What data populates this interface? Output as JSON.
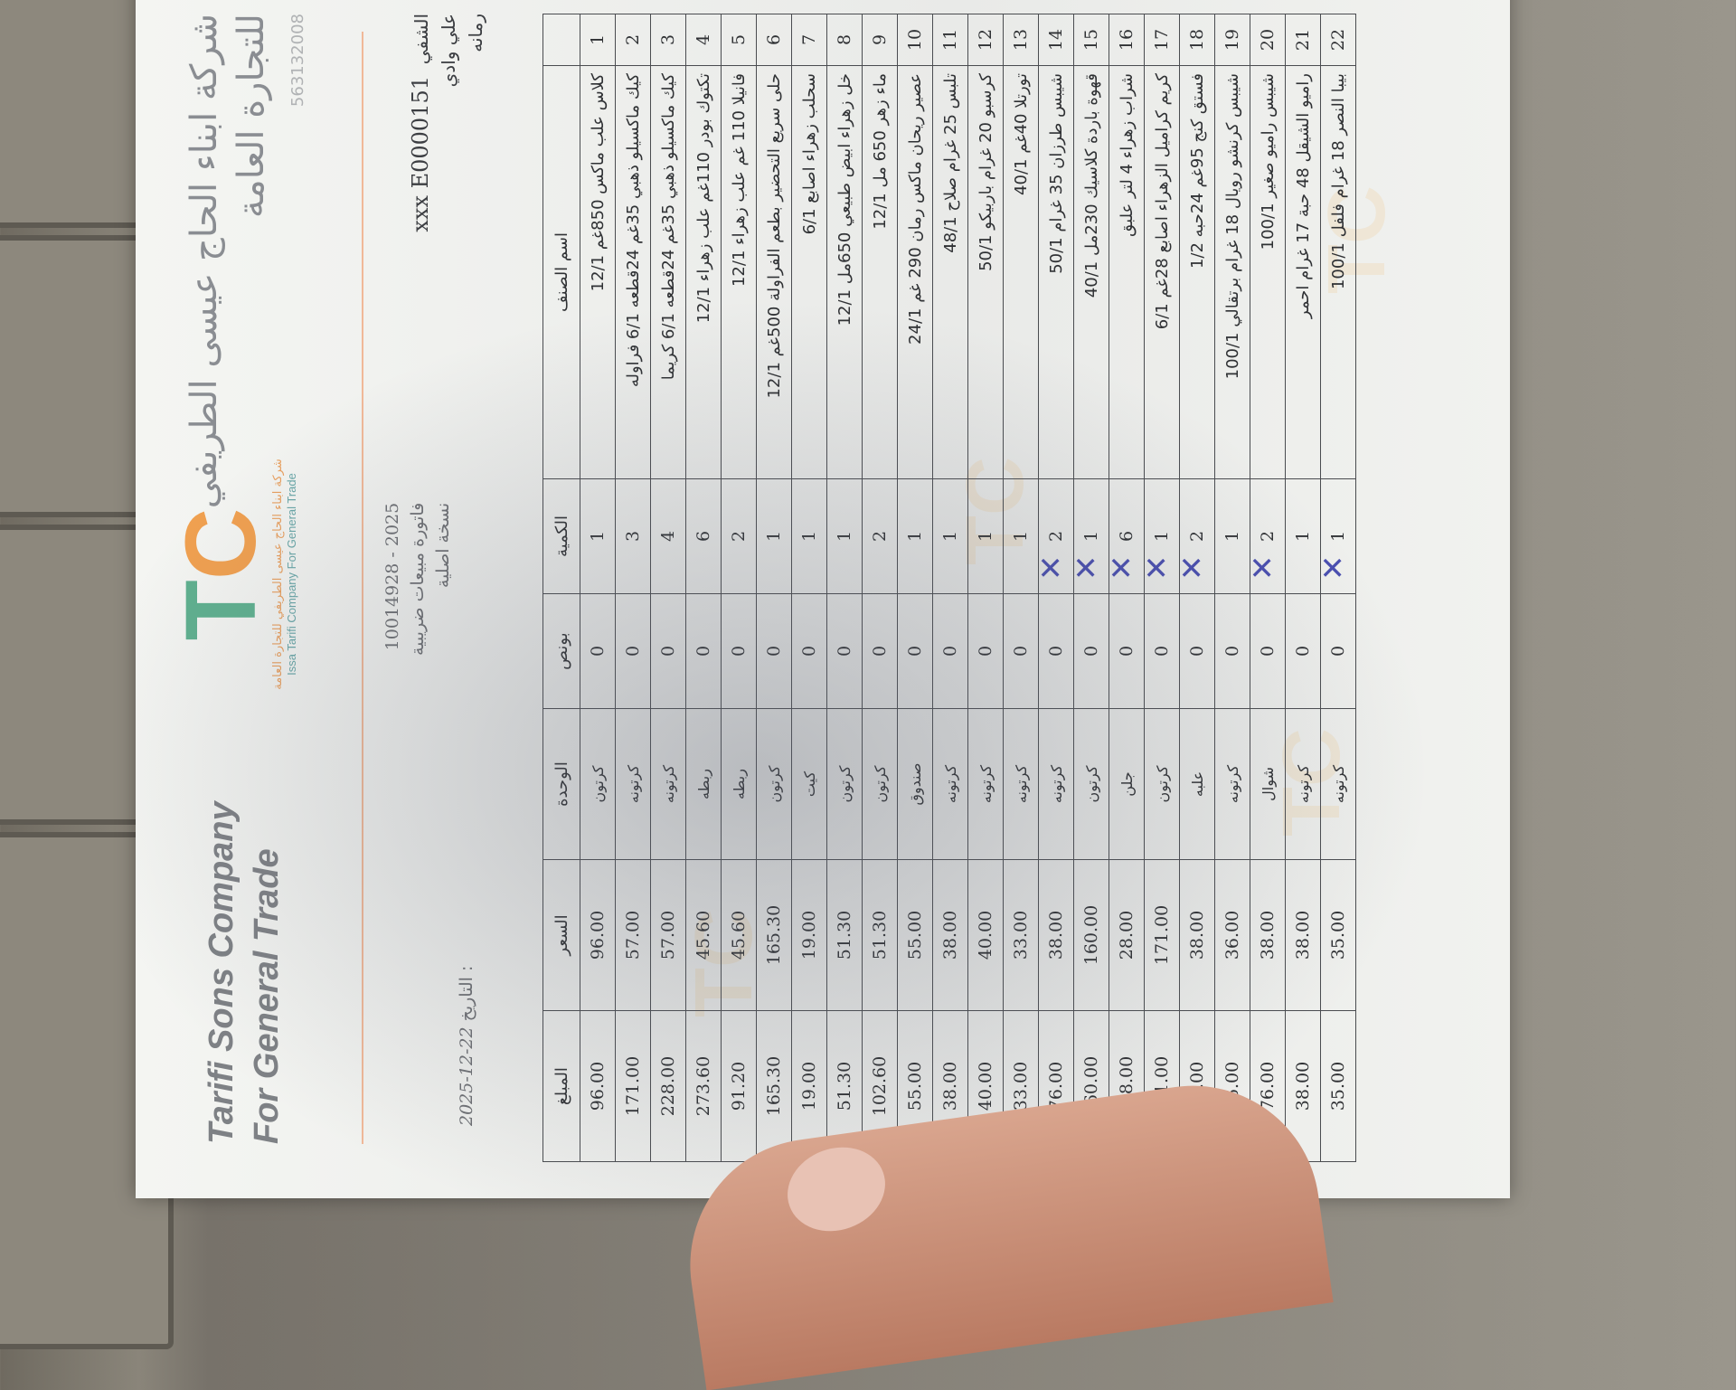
{
  "header": {
    "company_ar_line1": "شركة ابناء الحاج عيسى الطريفي",
    "company_ar_line2": "للتجارة العامة",
    "registration_no": "563132008",
    "company_en_line1": "Tarifi Sons Company",
    "company_en_line2": "For General Trade",
    "logo_text": "TC",
    "logo_sub_ar": "شركة ابناء الحاج عيسى الطريفي للتجارة العامة",
    "logo_sub_en": "Issa Tarifi Company For General Trade"
  },
  "invoice": {
    "number": "10014928 - 2025",
    "type": "فاتورة مبيعات ضريبية",
    "copy": "نسخة اصلية",
    "date_label": "التاريخ :",
    "date": "2025-12-22"
  },
  "customer": {
    "code": "xxx E0000151",
    "name_fragment": "الشفي",
    "line2": "علي وادي",
    "line3": "رمانه"
  },
  "table": {
    "headers": [
      "",
      "اسم الصنف",
      "الكمية",
      "بونص",
      "الوحدة",
      "السعر",
      "المبلغ"
    ],
    "rows": [
      {
        "n": "1",
        "name": "كلاس علب ماكس 850غم 12/1",
        "qty": "1",
        "bonus": "0",
        "unit": "كرتون",
        "price": "96.00",
        "amount": "96.00",
        "x": false
      },
      {
        "n": "2",
        "name": "كيك ماكسيلو ذهبي 35غم 24قطعه 6/1 فراوله",
        "qty": "3",
        "bonus": "0",
        "unit": "كرتونه",
        "price": "57.00",
        "amount": "171.00",
        "x": false
      },
      {
        "n": "3",
        "name": "كيك ماكسيلو ذهبي 35غم 24قطعه 6/1 كريما",
        "qty": "4",
        "bonus": "0",
        "unit": "كرتونه",
        "price": "57.00",
        "amount": "228.00",
        "x": false
      },
      {
        "n": "4",
        "name": "تكتوك بودر 110غم علب زهراء 12/1",
        "qty": "6",
        "bonus": "0",
        "unit": "ربطه",
        "price": "45.60",
        "amount": "273.60",
        "x": false
      },
      {
        "n": "5",
        "name": "فانيلا 110 غم علب زهراء 12/1",
        "qty": "2",
        "bonus": "0",
        "unit": "ربطه",
        "price": "45.60",
        "amount": "91.20",
        "x": false
      },
      {
        "n": "6",
        "name": "حلى سريع التحضير بطعم الفراولة 500غم 12/1",
        "qty": "1",
        "bonus": "0",
        "unit": "كرتون",
        "price": "165.30",
        "amount": "165.30",
        "x": false
      },
      {
        "n": "7",
        "name": "سحلب زهراء اصابع 6/1",
        "qty": "1",
        "bonus": "0",
        "unit": "كيت",
        "price": "19.00",
        "amount": "19.00",
        "x": false
      },
      {
        "n": "8",
        "name": "خل زهراء ابيض طبيعي 650مل 12/1",
        "qty": "1",
        "bonus": "0",
        "unit": "كرتون",
        "price": "51.30",
        "amount": "51.30",
        "x": false
      },
      {
        "n": "9",
        "name": "ماء زهر 650 مل 12/1",
        "qty": "2",
        "bonus": "0",
        "unit": "كرتون",
        "price": "51.30",
        "amount": "102.60",
        "x": false
      },
      {
        "n": "10",
        "name": "عصير ريحان ماكس رمان 290 غم 24/1",
        "qty": "1",
        "bonus": "0",
        "unit": "صندوق",
        "price": "55.00",
        "amount": "55.00",
        "x": false
      },
      {
        "n": "11",
        "name": "تلبس 25 غرام صلاح 48/1",
        "qty": "1",
        "bonus": "0",
        "unit": "كرتونه",
        "price": "38.00",
        "amount": "38.00",
        "x": false
      },
      {
        "n": "12",
        "name": "كرسبو 20 غرام باربيكو 50/1",
        "qty": "1",
        "bonus": "0",
        "unit": "كرتونه",
        "price": "40.00",
        "amount": "40.00",
        "x": false
      },
      {
        "n": "13",
        "name": "تورتلا 40غم 40/1",
        "qty": "1",
        "bonus": "0",
        "unit": "كرتونه",
        "price": "33.00",
        "amount": "33.00",
        "x": false
      },
      {
        "n": "14",
        "name": "شيبس طرزان 35 غرام 50/1",
        "qty": "2",
        "bonus": "0",
        "unit": "كرتونه",
        "price": "38.00",
        "amount": "76.00",
        "x": true
      },
      {
        "n": "15",
        "name": "قهوة باردة كلاسيك 230مل 40/1",
        "qty": "1",
        "bonus": "0",
        "unit": "كرتون",
        "price": "160.00",
        "amount": "160.00",
        "x": true
      },
      {
        "n": "16",
        "name": "شراب زهراء 4 لتر علبق",
        "qty": "6",
        "bonus": "0",
        "unit": "جلن",
        "price": "28.00",
        "amount": "168.00",
        "x": true
      },
      {
        "n": "17",
        "name": "كريم كراميل الزهراء اصابع 28غم 6/1",
        "qty": "1",
        "bonus": "0",
        "unit": "كرتون",
        "price": "171.00",
        "amount": "171.00",
        "x": true
      },
      {
        "n": "18",
        "name": "فستق كنج 95غم 24حبه 1/2",
        "qty": "2",
        "bonus": "0",
        "unit": "علبه",
        "price": "38.00",
        "amount": "76.00",
        "x": true
      },
      {
        "n": "19",
        "name": "شيبس كرنشو رويال 18 غرام برتقالي 100/1",
        "qty": "1",
        "bonus": "0",
        "unit": "كرتونه",
        "price": "36.00",
        "amount": "36.00",
        "x": false
      },
      {
        "n": "20",
        "name": "شيبس راميو صغير 100/1",
        "qty": "2",
        "bonus": "0",
        "unit": "شوال",
        "price": "38.00",
        "amount": "76.00",
        "x": true
      },
      {
        "n": "21",
        "name": "راميو الشيقل 48 حبة 17 غرام احمر",
        "qty": "1",
        "bonus": "0",
        "unit": "كرتونه",
        "price": "38.00",
        "amount": "38.00",
        "x": false
      },
      {
        "n": "22",
        "name": "بيبا النصر 18 غرام فلفل 100/1",
        "qty": "1",
        "bonus": "0",
        "unit": "كرتونه",
        "price": "35.00",
        "amount": "35.00",
        "x": true
      }
    ]
  },
  "colors": {
    "logo_green": "#5fb08f",
    "logo_orange": "#f0a050",
    "pen_mark": "#4a4fb0"
  }
}
